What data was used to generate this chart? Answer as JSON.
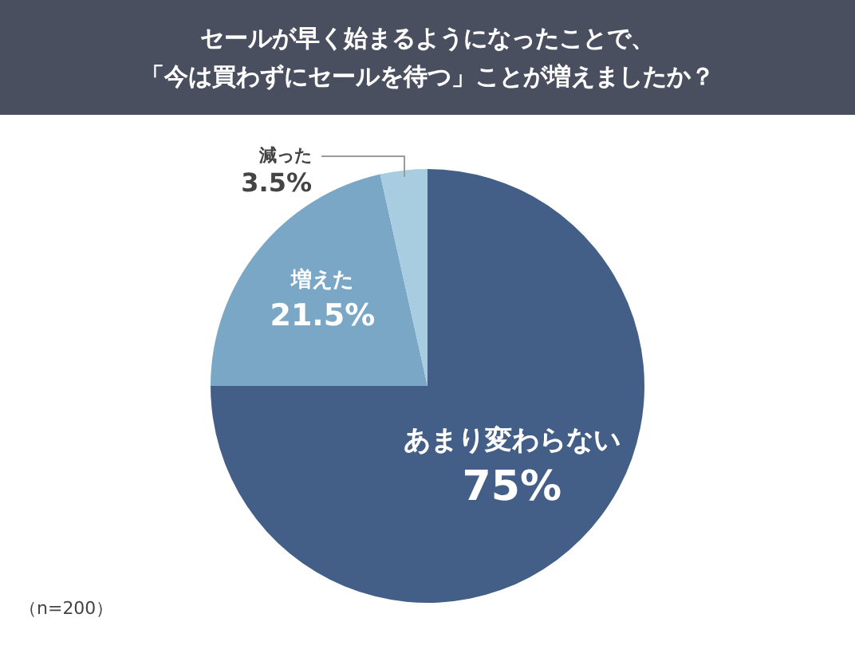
{
  "chart_data": {
    "type": "pie",
    "title": "セールが早く始まるようになったことで、「今は買わずにセールを待つ」ことが増えましたか？",
    "categories": [
      "あまり変わらない",
      "増えた",
      "減った"
    ],
    "values": [
      75,
      21.5,
      3.5
    ],
    "colors": [
      "#445f87",
      "#7ba7c6",
      "#a8cde0"
    ],
    "value_labels": [
      "75%",
      "21.5%",
      "3.5%"
    ],
    "annotations": [
      "（n=200）"
    ],
    "legend": false
  }
}
